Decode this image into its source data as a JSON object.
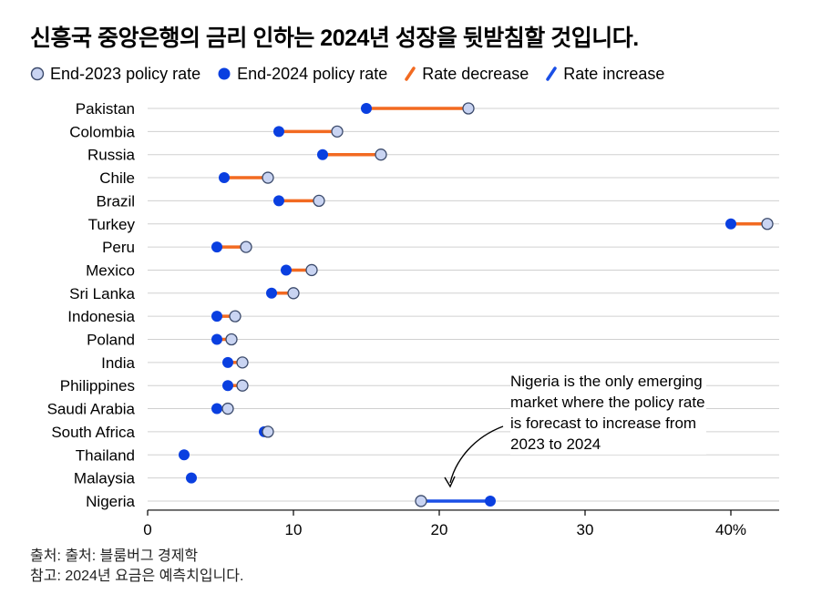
{
  "title": "신흥국 중앙은행의 금리 인하는 2024년 성장을 뒷받침할 것입니다.",
  "legend": {
    "end_2023": "End-2023 policy rate",
    "end_2024": "End-2024 policy rate",
    "decrease": "Rate decrease",
    "increase": "Rate increase"
  },
  "colors": {
    "end_2023_fill": "#c9d4f2",
    "end_2023_stroke": "#3b4a6b",
    "end_2024": "#0a3fe0",
    "decrease": "#f26a21",
    "increase": "#1a4fe6",
    "grid": "#d0d0d0"
  },
  "annotation": "Nigeria is the only emerging market where the policy rate is forecast to increase from 2023 to 2024",
  "source": {
    "line1": "출처: 출처: 블룸버그 경제학",
    "line2": "참고: 2024년 요금은 예측치입니다."
  },
  "chart_data": {
    "type": "dumbbell",
    "xlim": [
      0,
      43
    ],
    "xticks": [
      0,
      10,
      20,
      30,
      40
    ],
    "xtick_labels": [
      "0",
      "10",
      "20",
      "30",
      "40%"
    ],
    "categories": [
      "Pakistan",
      "Colombia",
      "Russia",
      "Chile",
      "Brazil",
      "Turkey",
      "Peru",
      "Mexico",
      "Sri Lanka",
      "Indonesia",
      "Poland",
      "India",
      "Philippines",
      "Saudi Arabia",
      "South Africa",
      "Thailand",
      "Malaysia",
      "Nigeria"
    ],
    "series": [
      {
        "name": "End-2023 policy rate",
        "values": [
          22,
          13,
          16,
          8.25,
          11.75,
          42.5,
          6.75,
          11.25,
          10,
          6,
          5.75,
          6.5,
          6.5,
          5.5,
          8.25,
          2.5,
          3,
          18.75
        ]
      },
      {
        "name": "End-2024 policy rate",
        "values": [
          15,
          9,
          12,
          5.25,
          9,
          40,
          4.75,
          9.5,
          8.5,
          4.75,
          4.75,
          5.5,
          5.5,
          4.75,
          8,
          2.5,
          3,
          23.5
        ]
      }
    ]
  }
}
